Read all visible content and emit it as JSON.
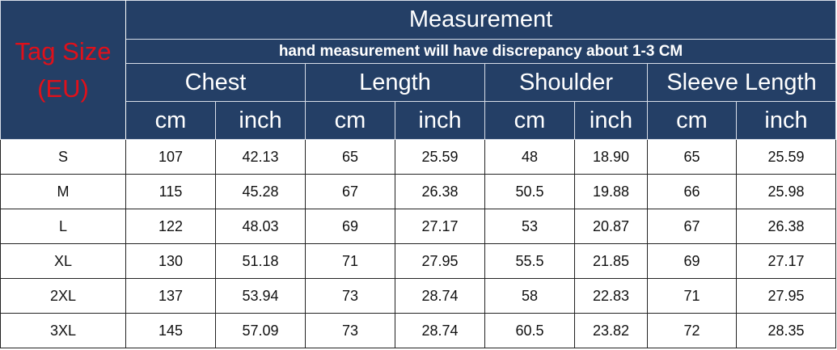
{
  "header": {
    "tag_size": "Tag Size",
    "tag_size_unit": "(EU)",
    "title": "Measurement",
    "note": "hand measurement will have discrepancy about 1-3 CM",
    "groups": [
      "Chest",
      "Length",
      "Shoulder",
      "Sleeve Length"
    ],
    "units": [
      "cm",
      "inch",
      "cm",
      "inch",
      "cm",
      "inch",
      "cm",
      "inch"
    ]
  },
  "colors": {
    "header_bg": "#243f66",
    "tag_text": "#e0101a",
    "header_text": "#ffffff"
  },
  "rows": [
    {
      "size": "S",
      "values": [
        "107",
        "42.13",
        "65",
        "25.59",
        "48",
        "18.90",
        "65",
        "25.59"
      ]
    },
    {
      "size": "M",
      "values": [
        "115",
        "45.28",
        "67",
        "26.38",
        "50.5",
        "19.88",
        "66",
        "25.98"
      ]
    },
    {
      "size": "L",
      "values": [
        "122",
        "48.03",
        "69",
        "27.17",
        "53",
        "20.87",
        "67",
        "26.38"
      ]
    },
    {
      "size": "XL",
      "values": [
        "130",
        "51.18",
        "71",
        "27.95",
        "55.5",
        "21.85",
        "69",
        "27.17"
      ]
    },
    {
      "size": "2XL",
      "values": [
        "137",
        "53.94",
        "73",
        "28.74",
        "58",
        "22.83",
        "71",
        "27.95"
      ]
    },
    {
      "size": "3XL",
      "values": [
        "145",
        "57.09",
        "73",
        "28.74",
        "60.5",
        "23.82",
        "72",
        "28.35"
      ]
    }
  ]
}
